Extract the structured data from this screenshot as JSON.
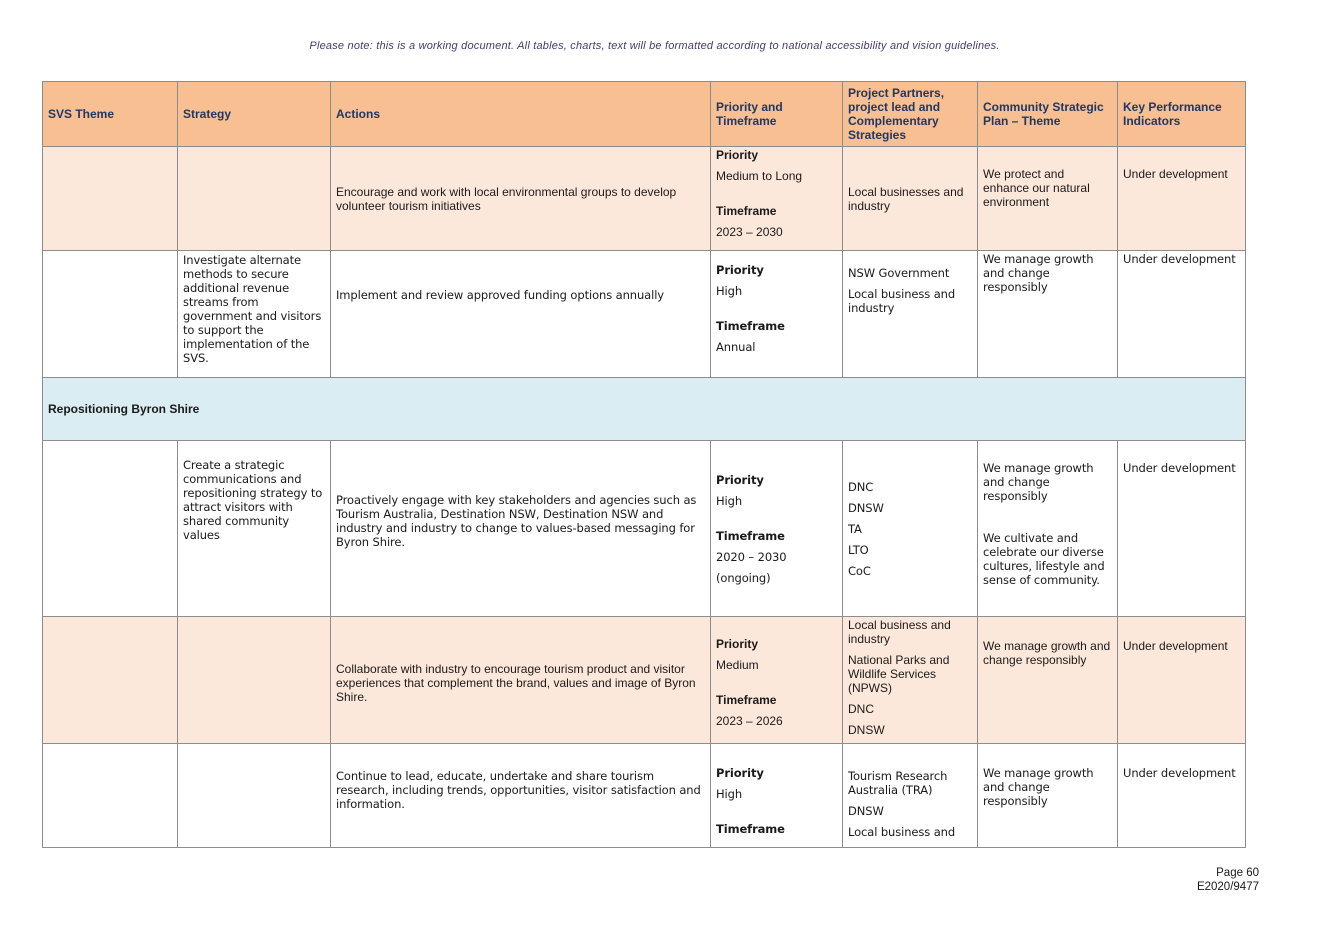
{
  "note": "Please note: this is a working document. All tables, charts, text will be formatted according to national accessibility and vision guidelines.",
  "headers": {
    "theme": "SVS Theme",
    "strategy": "Strategy",
    "actions": "Actions",
    "priority": "Priority and Timeframe",
    "partners": "Project Partners, project lead and Complementary Strategies",
    "csp": "Community Strategic Plan – Theme",
    "kpi": "Key Performance Indicators"
  },
  "labels": {
    "priority": "Priority",
    "timeframe": "Timeframe"
  },
  "rows": [
    {
      "strategy": "",
      "action": "Encourage and work with local environmental groups to develop volunteer tourism initiatives",
      "priority": "Medium to Long",
      "timeframe": "2023 – 2030",
      "partners": [
        "Local businesses and industry"
      ],
      "csp": [
        "We protect and enhance our natural environment"
      ],
      "kpi": "Under development"
    },
    {
      "strategy": "Investigate alternate methods to secure additional revenue streams from government and visitors to support the implementation of the SVS.",
      "action": "Implement and review approved funding options annually",
      "priority": "High",
      "timeframe": "Annual",
      "partners": [
        "NSW Government",
        "Local business and industry"
      ],
      "csp": [
        "We manage growth and change responsibly"
      ],
      "kpi": "Under development"
    },
    {
      "strategy": "Create a strategic communications and repositioning strategy to attract visitors with shared community values",
      "action": "Proactively engage with key stakeholders and agencies such as Tourism Australia, Destination NSW, Destination NSW and industry and industry to change to values-based messaging for Byron Shire.",
      "priority": "High",
      "timeframe": "2020 – 2030",
      "timeframe_extra": "(ongoing)",
      "partners": [
        "DNC",
        "DNSW",
        "TA",
        "LTO",
        "CoC"
      ],
      "csp": [
        "We manage growth and change responsibly",
        "We cultivate and celebrate our diverse cultures, lifestyle and sense of community."
      ],
      "kpi": "Under development"
    },
    {
      "strategy": "",
      "action": "Collaborate with industry to encourage tourism product and visitor experiences that complement the brand, values and image of Byron Shire.",
      "priority": "Medium",
      "timeframe": "2023 – 2026",
      "partners": [
        "Local business and industry",
        "National Parks and Wildlife Services (NPWS)",
        "DNC",
        "DNSW"
      ],
      "csp": [
        "We manage growth and change responsibly"
      ],
      "kpi": "Under development"
    },
    {
      "strategy": "",
      "action": "Continue to lead, educate, undertake and share tourism research, including trends, opportunities, visitor satisfaction and information.",
      "priority": "High",
      "partners": [
        "Tourism Research Australia (TRA)",
        "DNSW",
        "Local business and"
      ],
      "csp": [
        "We manage growth and change responsibly"
      ],
      "kpi": "Under development"
    }
  ],
  "section": "Repositioning Byron Shire",
  "footer": {
    "page": "Page 60",
    "ref": "E2020/9477"
  }
}
